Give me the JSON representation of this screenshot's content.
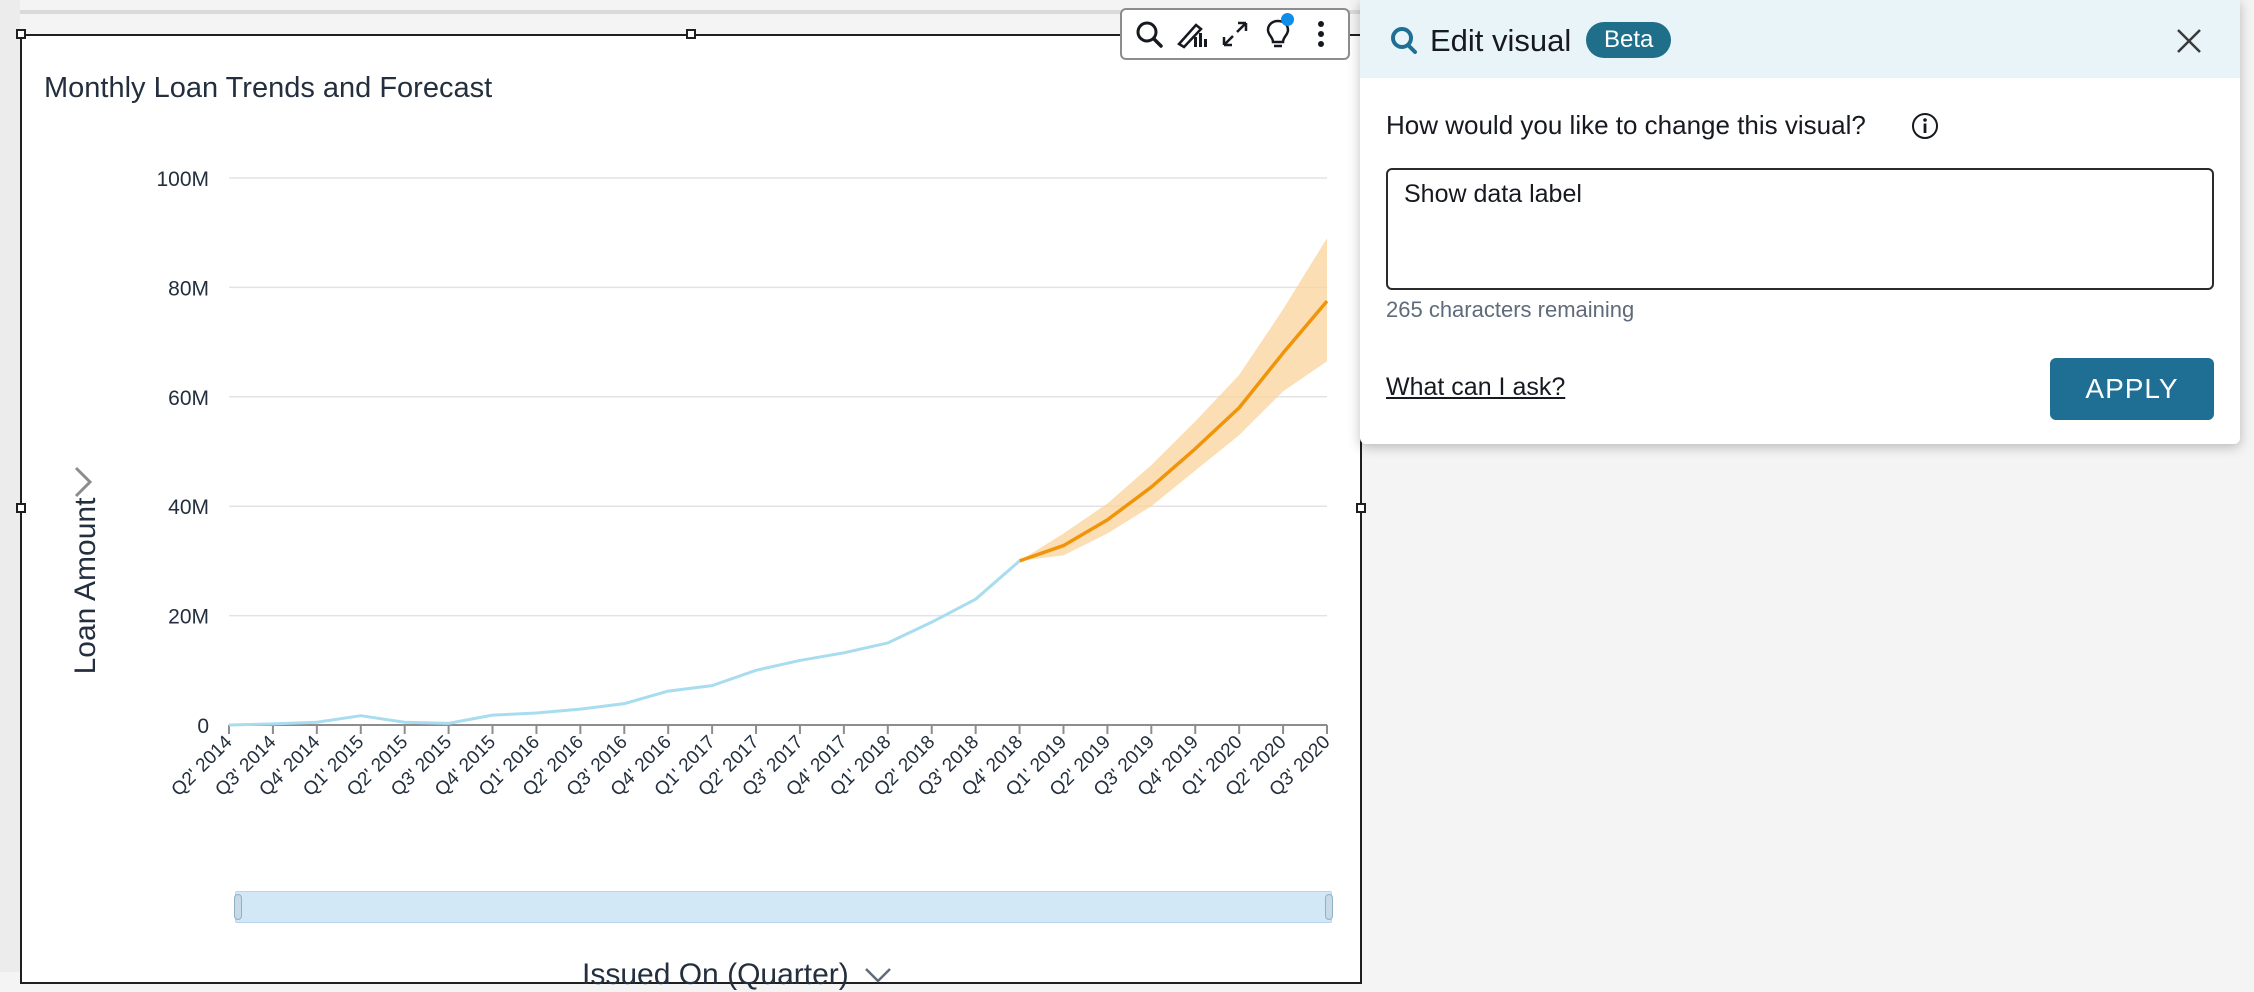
{
  "visual": {
    "title": "Monthly Loan Trends and Forecast",
    "y_axis_title": "Loan Amount",
    "x_axis_title": "Issued On (Quarter)",
    "toolbar": [
      {
        "name": "search-icon",
        "label": "Search"
      },
      {
        "name": "chart-type-icon",
        "label": "Format"
      },
      {
        "name": "expand-icon",
        "label": "Expand"
      },
      {
        "name": "insight-bulb-icon",
        "label": "Insights"
      },
      {
        "name": "more-vertical-icon",
        "label": "More"
      }
    ]
  },
  "chart_data": {
    "type": "line",
    "title": "Monthly Loan Trends and Forecast",
    "xlabel": "Issued On (Quarter)",
    "ylabel": "Loan Amount",
    "ylim": [
      0,
      100000000
    ],
    "y_ticks": [
      "0",
      "20M",
      "40M",
      "60M",
      "80M",
      "100M"
    ],
    "y_tick_values": [
      0,
      20000000,
      40000000,
      60000000,
      80000000,
      100000000
    ],
    "categories": [
      "Q2' 2014",
      "Q3' 2014",
      "Q4' 2014",
      "Q1' 2015",
      "Q2' 2015",
      "Q3' 2015",
      "Q4' 2015",
      "Q1' 2016",
      "Q2' 2016",
      "Q3' 2016",
      "Q4' 2016",
      "Q1' 2017",
      "Q2' 2017",
      "Q3' 2017",
      "Q4' 2017",
      "Q1' 2018",
      "Q2' 2018",
      "Q3' 2018",
      "Q4' 2018",
      "Q1' 2019",
      "Q2' 2019",
      "Q3' 2019",
      "Q4' 2019",
      "Q1' 2020",
      "Q2' 2020",
      "Q3' 2020"
    ],
    "grid": true,
    "series": [
      {
        "kind": "actual",
        "color": "#a8dcef",
        "values": [
          0,
          200000,
          500000,
          1700000,
          500000,
          300000,
          1800000,
          2200000,
          2900000,
          3900000,
          6200000,
          7200000,
          10000000,
          11800000,
          13200000,
          15000000,
          18800000,
          23000000,
          30000000,
          null,
          null,
          null,
          null,
          null,
          null,
          null
        ]
      },
      {
        "kind": "forecast",
        "color": "#f0940a",
        "values": [
          null,
          null,
          null,
          null,
          null,
          null,
          null,
          null,
          null,
          null,
          null,
          null,
          null,
          null,
          null,
          null,
          null,
          null,
          30000000,
          32800000,
          37500000,
          43500000,
          50500000,
          58000000,
          68000000,
          77500000
        ],
        "lower": [
          null,
          null,
          null,
          null,
          null,
          null,
          null,
          null,
          null,
          null,
          null,
          null,
          null,
          null,
          null,
          null,
          null,
          null,
          30000000,
          31000000,
          35000000,
          40000000,
          46500000,
          53000000,
          61000000,
          66500000
        ],
        "upper": [
          null,
          null,
          null,
          null,
          null,
          null,
          null,
          null,
          null,
          null,
          null,
          null,
          null,
          null,
          null,
          null,
          null,
          null,
          30000000,
          35000000,
          40500000,
          47500000,
          55500000,
          64000000,
          76000000,
          89000000
        ],
        "band_color": "#fbd39c"
      }
    ]
  },
  "edit_panel": {
    "title": "Edit visual",
    "badge": "Beta",
    "prompt_label": "How would you like to change this visual?",
    "input_value": "Show data label",
    "chars_remaining": "265 characters remaining",
    "help_link": "What can I ask?",
    "apply_label": "APPLY",
    "accent_color": "#1f6f95"
  }
}
